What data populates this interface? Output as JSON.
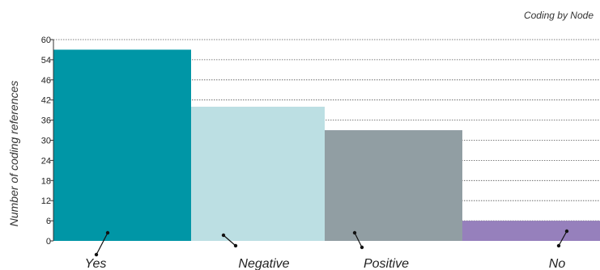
{
  "chart_data": {
    "type": "bar",
    "title": "Coding by Node",
    "ylabel": "Number of coding references",
    "xlabel": "",
    "categories": [
      "Yes",
      "Negative",
      "Positive",
      "No"
    ],
    "values": [
      57,
      40,
      33,
      6
    ],
    "colors": [
      "#0096a6",
      "#bcdfe3",
      "#919ea3",
      "#9680bc"
    ],
    "ylim": [
      0,
      60
    ],
    "yticks": [
      "0",
      "6",
      "12",
      "18",
      "24",
      "30",
      "36",
      "42",
      "46",
      "54",
      "60"
    ],
    "grid": true,
    "legend": "none"
  }
}
